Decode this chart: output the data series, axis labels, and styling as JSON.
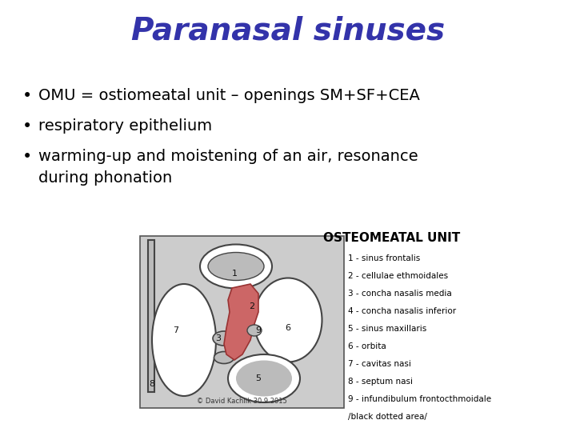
{
  "title": "Paranasal sinuses",
  "title_color": "#3333aa",
  "title_fontsize": 28,
  "title_fontstyle": "italic",
  "title_fontweight": "bold",
  "bullet_points": [
    "OMU = ostiomeatal unit – openings SM+SF+CEA",
    "respiratory epithelium",
    "warming-up and moistening of an air, resonance\nduring phonation"
  ],
  "bullet_fontsize": 14,
  "bullet_color": "#000000",
  "image_title": "OSTEOMEATAL UNIT",
  "image_title_fontsize": 11,
  "image_title_fontweight": "bold",
  "legend_lines": [
    "1 - sinus frontalis",
    "2 - cellulae ethmoidales",
    "3 - concha nasalis media",
    "4 - concha nasalis inferior",
    "5 - sinus maxillaris",
    "6 - orbita",
    "7 - cavitas nasi",
    "8 - septum nasi",
    "9 - infundibulum frontocthmoidale",
    "/black dotted area/"
  ],
  "legend_fontsize": 7.5,
  "copyright_text": "© David Kachlik 30.9.2015",
  "bg_color": "#ffffff",
  "diagram_bg": "#cccccc",
  "diagram_gray": "#888888",
  "diagram_dark": "#444444",
  "diagram_white": "#ffffff",
  "diagram_lgray": "#bbbbbb",
  "diagram_red": "#cc6666",
  "diagram_red_edge": "#993333"
}
